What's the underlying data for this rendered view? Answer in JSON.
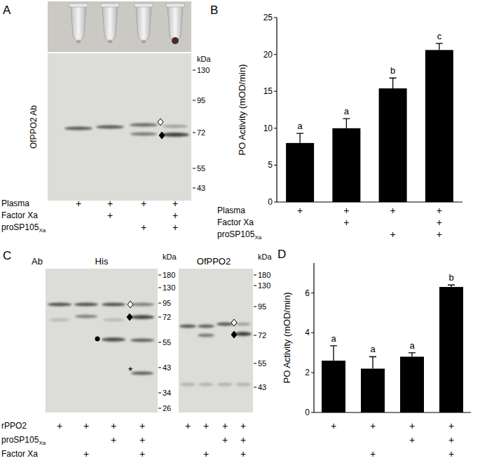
{
  "panel_labels": [
    "A",
    "B",
    "C",
    "D"
  ],
  "chart_data": [
    {
      "type": "bar",
      "y_label": "PO Activity (mOD/min)",
      "categories": [
        null,
        null,
        null,
        null
      ],
      "values": [
        8,
        10,
        15.4,
        20.6
      ],
      "errors": [
        1.3,
        1.3,
        1.4,
        0.9
      ],
      "annotations": [
        "a",
        "a",
        "b",
        "c"
      ],
      "color": "#000000",
      "ylim": [
        0,
        25
      ],
      "yticks": [
        0,
        5,
        10,
        15,
        20,
        25
      ],
      "tick_labels": "y",
      "grid": false
    },
    {
      "type": "bar",
      "y_label": "PO Activity (mOD/min)",
      "categories": [
        null,
        null,
        null,
        null
      ],
      "values": [
        2.6,
        2.2,
        2.8,
        6.3
      ],
      "errors": [
        0.75,
        0.6,
        0.2,
        0.1
      ],
      "annotations": [
        "a",
        "a",
        "a",
        "b"
      ],
      "color": "#000000",
      "ylim": [
        0,
        7.5
      ],
      "yticks": [
        0,
        2,
        4,
        6
      ],
      "tick_labels": "y",
      "grid": false
    }
  ],
  "blots": {
    "A": {
      "antibody": "OfPPO2 Ab",
      "unit": "kDa",
      "markers": [
        130,
        95,
        72,
        55,
        43
      ]
    },
    "C_ab": "Ab",
    "C_his": {
      "header": "His",
      "unit": "kDa",
      "markers": [
        180,
        130,
        95,
        72,
        55,
        43,
        34,
        26
      ],
      "symbol": "*"
    },
    "C_ofppo2": {
      "header": "OfPPO2",
      "unit": "kDa",
      "markers": [
        180,
        130,
        95,
        72,
        55,
        43
      ]
    }
  },
  "conditions": {
    "A": {
      "labels": [
        "Plasma",
        "Factor Xa",
        {
          "text": "proSP105",
          "sub": "Xa"
        }
      ],
      "rows": [
        [
          "+",
          "+",
          "+",
          "+"
        ],
        [
          null,
          "+",
          null,
          "+"
        ],
        [
          null,
          null,
          "+",
          "+"
        ]
      ]
    },
    "B": {
      "labels": [
        "Plasma",
        "Factor Xa",
        {
          "text": "proSP105",
          "sub": "Xa"
        }
      ],
      "rows": [
        [
          "+",
          "+",
          "+",
          "+"
        ],
        [
          null,
          "+",
          null,
          "+"
        ],
        [
          null,
          null,
          "+",
          "+"
        ]
      ]
    },
    "CD": {
      "labels": [
        "rPPO2",
        {
          "text": "proSP105",
          "sub": "Xa"
        },
        "Factor Xa"
      ],
      "rows": [
        [
          "+",
          "+",
          "+",
          "+"
        ],
        [
          null,
          null,
          "+",
          "+"
        ],
        [
          null,
          "+",
          null,
          "+"
        ]
      ]
    }
  }
}
